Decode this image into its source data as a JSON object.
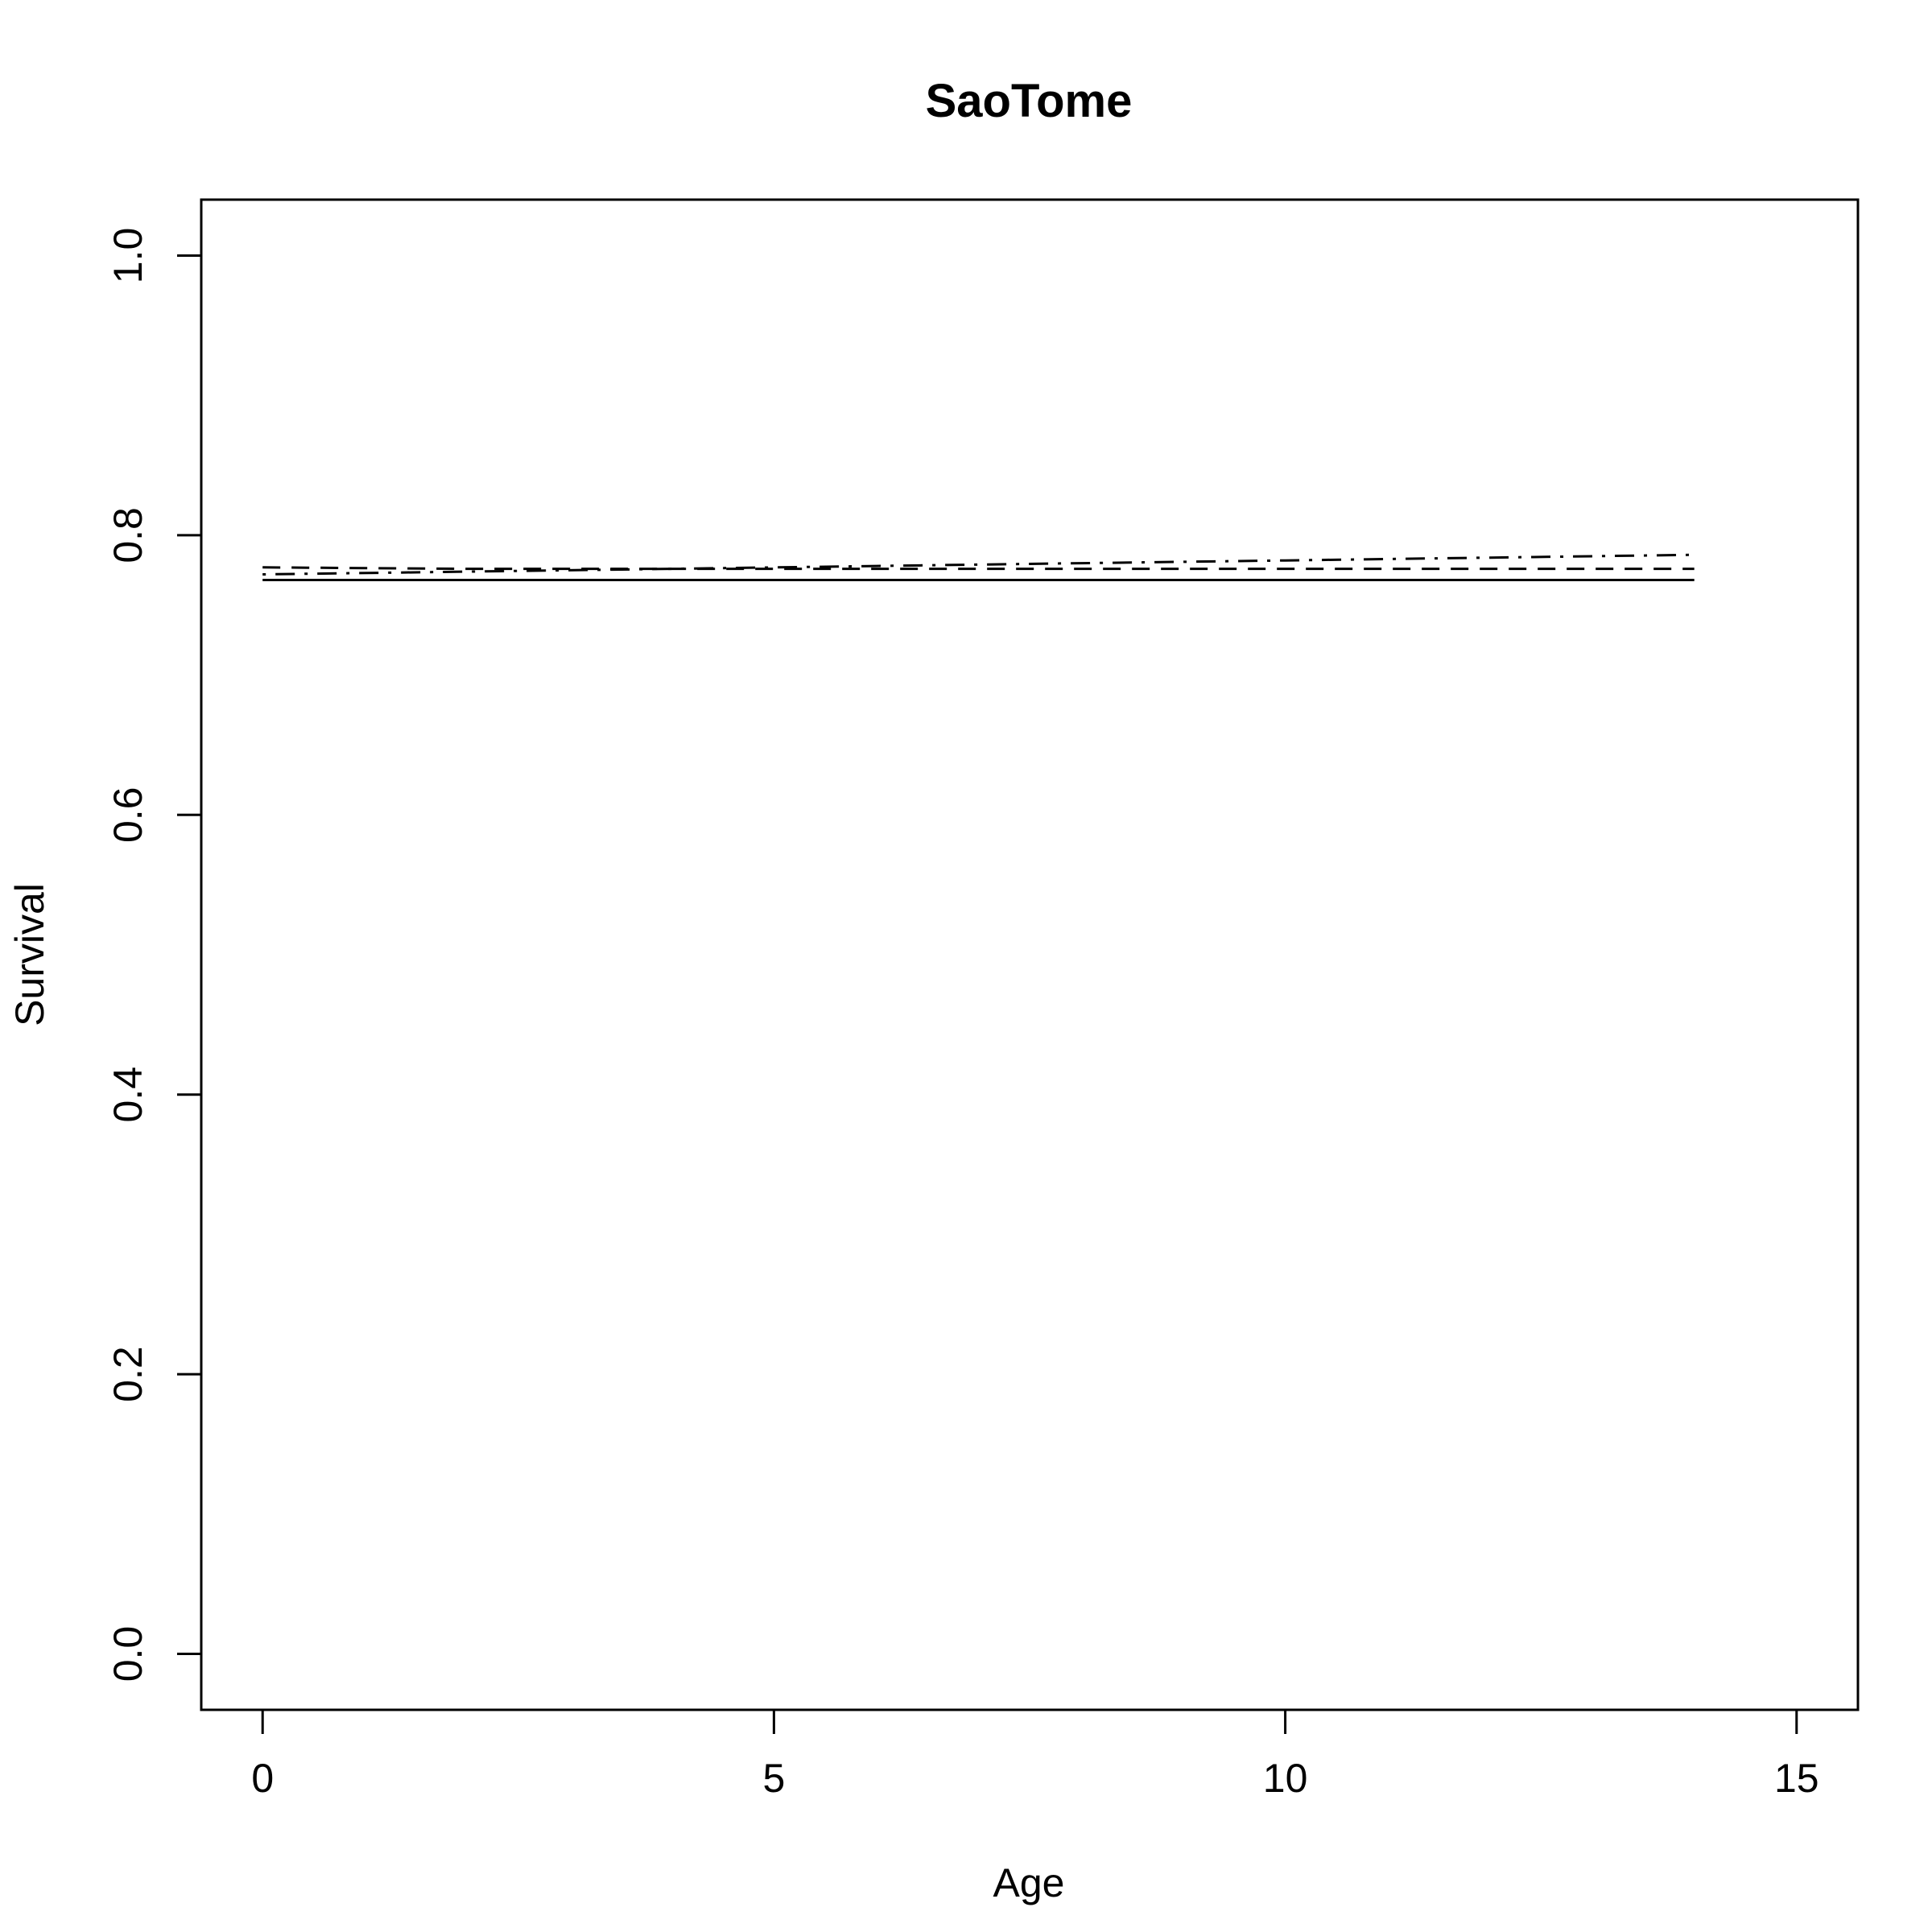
{
  "chart_data": {
    "type": "line",
    "title": "SaoTome",
    "xlabel": "Age",
    "ylabel": "Survival",
    "xlim": [
      -0.6,
      15.6
    ],
    "ylim": [
      -0.04,
      1.04
    ],
    "xticks": [
      0,
      5,
      10,
      15
    ],
    "xtick_labels": [
      "0",
      "5",
      "10",
      "15"
    ],
    "yticks": [
      0,
      0.2,
      0.4,
      0.6,
      0.8,
      1.0
    ],
    "ytick_labels": [
      "0.0",
      "0.2",
      "0.4",
      "0.6",
      "0.8",
      "1.0"
    ],
    "grid": false,
    "legend": "none",
    "series": [
      {
        "line_style": "solid",
        "x": [
          0,
          14
        ],
        "y": [
          0.768,
          0.768
        ]
      },
      {
        "line_style": "dashed",
        "x": [
          0,
          2,
          4,
          6,
          8,
          10,
          12,
          14
        ],
        "y": [
          0.777,
          0.776,
          0.776,
          0.776,
          0.776,
          0.776,
          0.776,
          0.776
        ]
      },
      {
        "line_style": "dotdash",
        "x": [
          0,
          2,
          4,
          6,
          8,
          10,
          12,
          14
        ],
        "y": [
          0.772,
          0.774,
          0.776,
          0.778,
          0.78,
          0.782,
          0.784,
          0.786
        ]
      }
    ]
  }
}
